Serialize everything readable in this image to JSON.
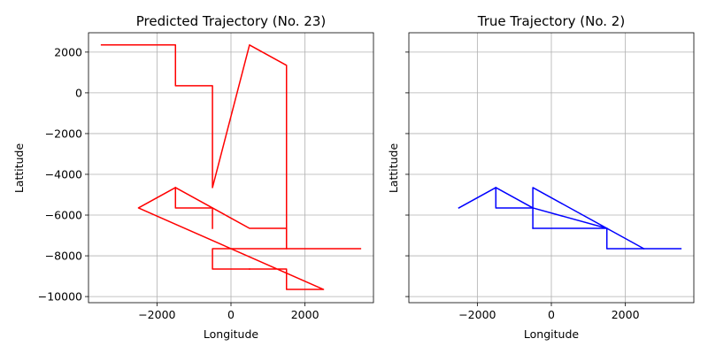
{
  "chart_data": [
    {
      "type": "line",
      "title": "Predicted Trajectory (No. 23)",
      "xlabel": "Longitude",
      "ylabel": "Lattitude",
      "xlim": [
        -3850,
        3850
      ],
      "ylim": [
        -10300,
        2950
      ],
      "xticks": [
        -2000,
        0,
        2000
      ],
      "yticks": [
        2000,
        0,
        -2000,
        -4000,
        -6000,
        -8000,
        -10000
      ],
      "xtick_labels": [
        "−2000",
        "0",
        "2000"
      ],
      "ytick_labels": [
        "2000",
        "0",
        "−2000",
        "−4000",
        "−6000",
        "−8000",
        "−10000"
      ],
      "grid": true,
      "show_yticklabels": true,
      "color": "#ff0000",
      "series": [
        {
          "x": [
            -3500,
            -1500,
            -1500,
            -500,
            -500,
            500,
            500,
            1500,
            1500,
            -500,
            -500,
            500
          ],
          "y": [
            2350,
            2350,
            350,
            350,
            -4650,
            2350,
            2350,
            1350,
            -7650,
            -7650,
            -8650,
            -8650
          ]
        },
        {
          "x": [
            500,
            1500,
            1500,
            2500,
            -2500,
            -1500,
            -1500,
            -500,
            500,
            1500,
            1500,
            3500
          ],
          "y": [
            -8650,
            -8650,
            -9650,
            -9650,
            -5650,
            -4650,
            -5650,
            -5650,
            -6650,
            -6650,
            -7650,
            -7650
          ]
        },
        {
          "x": [
            -1500,
            -500,
            -500
          ],
          "y": [
            -4650,
            -5650,
            -6650
          ]
        }
      ]
    },
    {
      "type": "line",
      "title": "True Trajectory (No. 2)",
      "xlabel": "Longitude",
      "ylabel": "Lattitude",
      "xlim": [
        -3850,
        3850
      ],
      "ylim": [
        -10300,
        2950
      ],
      "xticks": [
        -2000,
        0,
        2000
      ],
      "yticks": [
        2000,
        0,
        -2000,
        -4000,
        -6000,
        -8000,
        -10000
      ],
      "xtick_labels": [
        "−2000",
        "0",
        "2000"
      ],
      "ytick_labels": [],
      "grid": true,
      "show_yticklabels": false,
      "color": "#0000ff",
      "series": [
        {
          "x": [
            -2500,
            -1500,
            -1500,
            -500,
            -500,
            -500,
            1500,
            1500,
            3500
          ],
          "y": [
            -5650,
            -4650,
            -5650,
            -5650,
            -6650,
            -4650,
            -6650,
            -7650,
            -7650
          ]
        },
        {
          "x": [
            -1500,
            -500,
            1500,
            2500
          ],
          "y": [
            -4650,
            -5650,
            -6650,
            -7650
          ]
        },
        {
          "x": [
            -500,
            1500
          ],
          "y": [
            -6650,
            -6650
          ]
        }
      ]
    }
  ]
}
